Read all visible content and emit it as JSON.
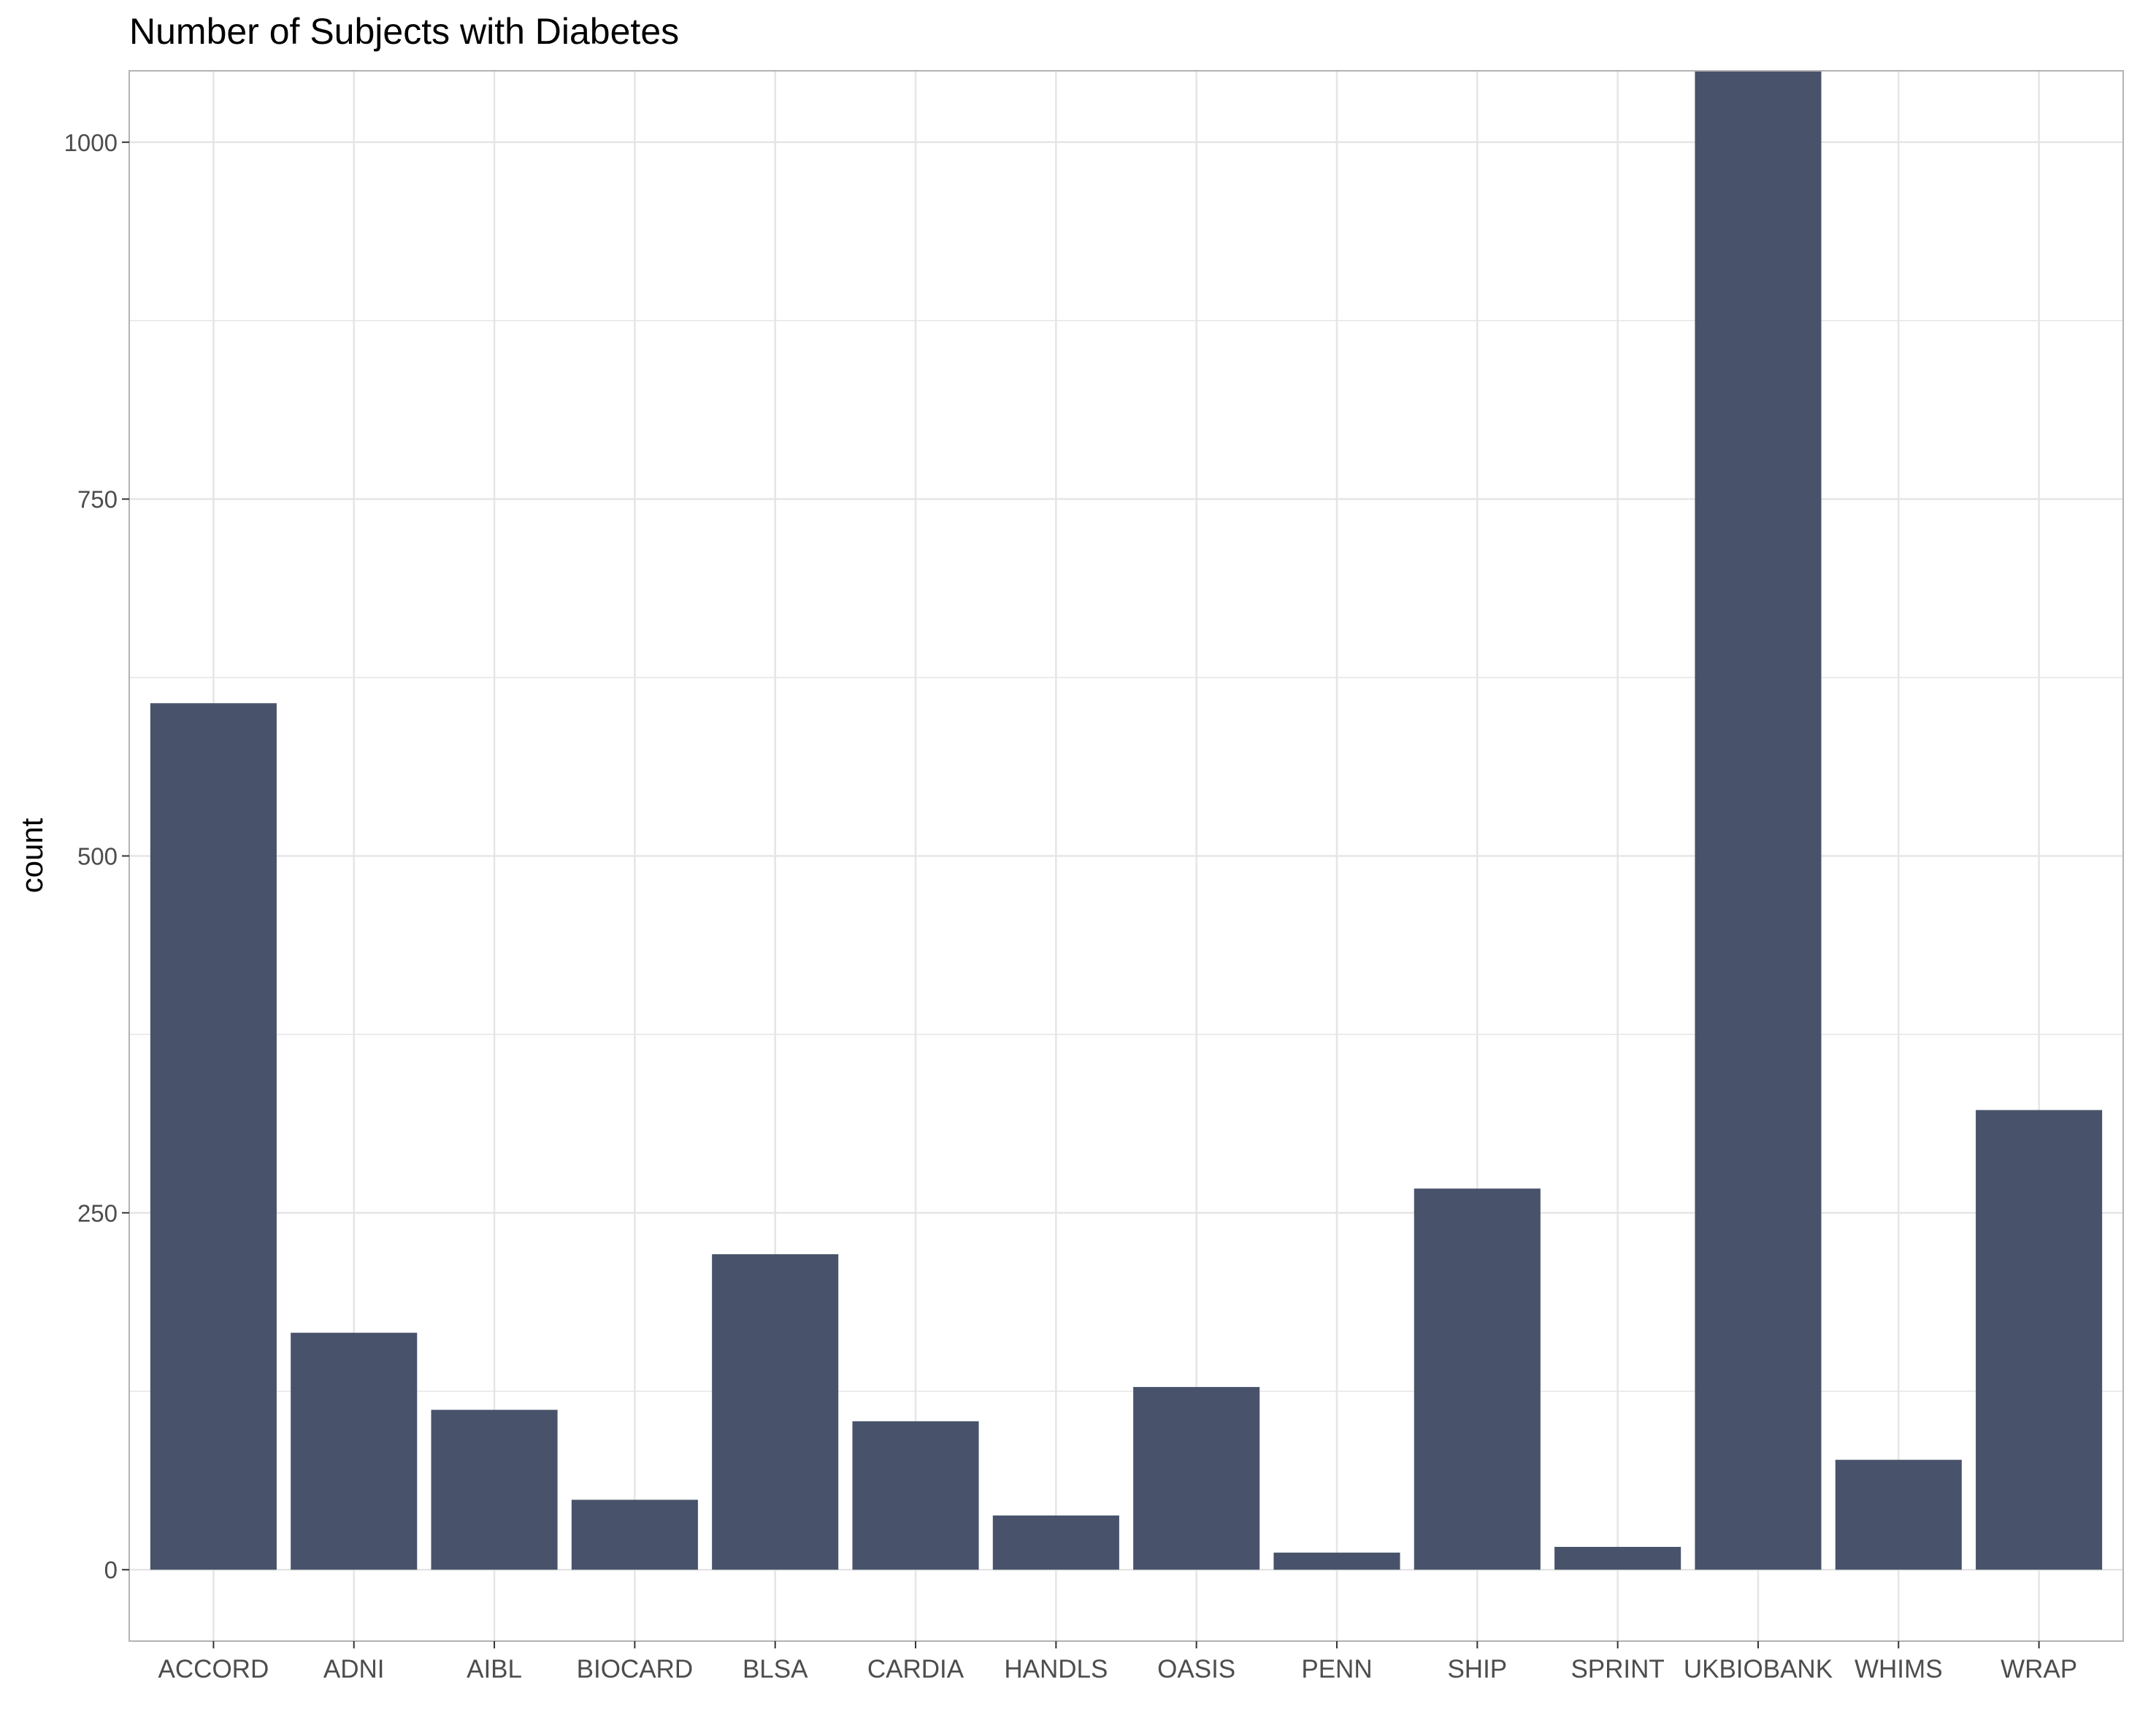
{
  "chart_data": {
    "type": "bar",
    "title": "Number of Subjects with Diabetes",
    "xlabel": "",
    "ylabel": "count",
    "categories": [
      "ACCORD",
      "ADNI",
      "AIBL",
      "BIOCARD",
      "BLSA",
      "CARDIA",
      "HANDLS",
      "OASIS",
      "PENN",
      "SHIP",
      "SPRINT",
      "UKBIOBANK",
      "WHIMS",
      "WRAP"
    ],
    "values": [
      607,
      166,
      112,
      49,
      221,
      104,
      38,
      128,
      12,
      267,
      16,
      1050,
      77,
      322
    ],
    "ylim": [
      -50,
      1050
    ],
    "yticks": [
      0,
      250,
      500,
      750,
      1000
    ],
    "ytick_labels": [
      "0",
      "250",
      "500",
      "750",
      "1000"
    ],
    "grid": true,
    "bar_color": "#48536b",
    "grid_color": "#e5e5e5",
    "panel_border_color": "#b3b3b3"
  }
}
